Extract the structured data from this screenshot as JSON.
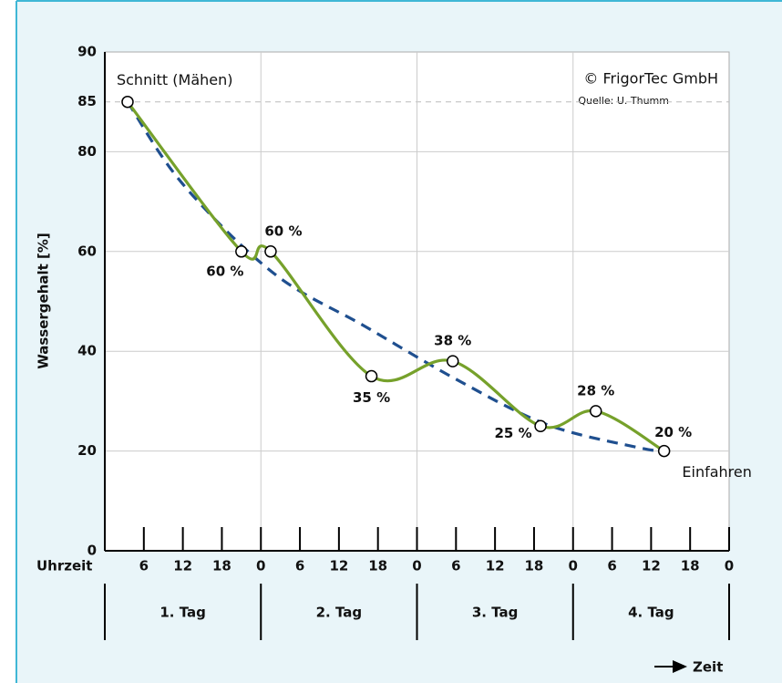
{
  "chart_data": {
    "type": "line",
    "ylabel": "Wassergehalt [%]",
    "xlabel": "Uhrzeit",
    "axis_arrow_label": "Zeit",
    "copyright": "© FrigorTec GmbH",
    "source": "Quelle: U. Thumm",
    "annotations": [
      {
        "text": "Schnitt (Mähen)",
        "point": 0
      },
      {
        "text": "Einfahren",
        "point": 7
      }
    ],
    "days": [
      "1. Tag",
      "2. Tag",
      "3. Tag",
      "4. Tag"
    ],
    "xlim": [
      0,
      96
    ],
    "xticks": [
      {
        "value": 6,
        "label": "6"
      },
      {
        "value": 12,
        "label": "12"
      },
      {
        "value": 18,
        "label": "18"
      },
      {
        "value": 24,
        "label": "0"
      },
      {
        "value": 30,
        "label": "6"
      },
      {
        "value": 36,
        "label": "12"
      },
      {
        "value": 42,
        "label": "18"
      },
      {
        "value": 48,
        "label": "0"
      },
      {
        "value": 54,
        "label": "6"
      },
      {
        "value": 60,
        "label": "12"
      },
      {
        "value": 66,
        "label": "18"
      },
      {
        "value": 72,
        "label": "0"
      },
      {
        "value": 78,
        "label": "6"
      },
      {
        "value": 84,
        "label": "12"
      },
      {
        "value": 90,
        "label": "18"
      },
      {
        "value": 96,
        "label": "0"
      }
    ],
    "ylim": [
      0,
      90
    ],
    "yticks": [
      0,
      20,
      40,
      60,
      80,
      85,
      90
    ],
    "reference_line": 85,
    "grid": true,
    "series": [
      {
        "color": "#76a12b",
        "x": [
          3.5,
          21,
          25.5,
          41,
          53.5,
          67,
          75.5,
          86
        ],
        "values": [
          85,
          60,
          60,
          35,
          38,
          25,
          28,
          20
        ],
        "value_labels": [
          null,
          "60 %",
          "60 %",
          "35 %",
          "38 %",
          "25 %",
          "28 %",
          "20 %"
        ]
      },
      {
        "color": "#1f4f8f",
        "dashed": true,
        "x": [
          3.5,
          12,
          26,
          40,
          54,
          68,
          82,
          86
        ],
        "values": [
          85,
          73.5,
          55.6,
          45,
          34.4,
          25.3,
          20.7,
          20
        ]
      }
    ]
  }
}
